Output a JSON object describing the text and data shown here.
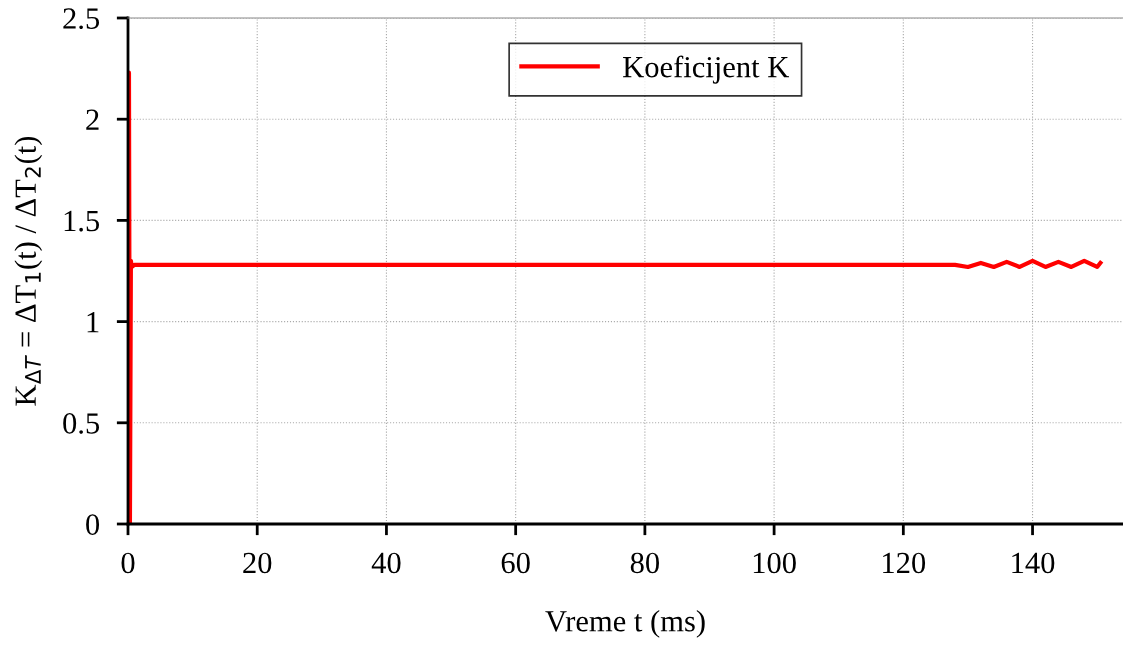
{
  "chart_data": {
    "type": "line",
    "xlabel": "Vreme t (ms)",
    "ylabel": "K$_{ΔT}$ = ΔT$_{1}$(t) / ΔT$_{2}$(t)",
    "series": [
      {
        "name": "Koeficijent K",
        "color": "#ff0000",
        "x": [
          0,
          0.15,
          0.3,
          0.45,
          0.6,
          1,
          10,
          30,
          60,
          90,
          120,
          128,
          130,
          132,
          134,
          136,
          138,
          140,
          142,
          144,
          146,
          148,
          150,
          150.5
        ],
        "values": [
          0,
          2.23,
          0,
          1.3,
          1.27,
          1.28,
          1.28,
          1.28,
          1.28,
          1.28,
          1.28,
          1.28,
          1.27,
          1.29,
          1.27,
          1.295,
          1.27,
          1.3,
          1.27,
          1.295,
          1.27,
          1.3,
          1.27,
          1.29
        ]
      }
    ],
    "xlim": [
      0,
      154
    ],
    "xticks": [
      0,
      20,
      40,
      60,
      80,
      100,
      120,
      140
    ],
    "ylim": [
      0,
      2.5
    ],
    "yticks": [
      0,
      0.5,
      1,
      1.5,
      2,
      2.5
    ],
    "grid": true,
    "legend": "top",
    "line_style": "solid"
  }
}
